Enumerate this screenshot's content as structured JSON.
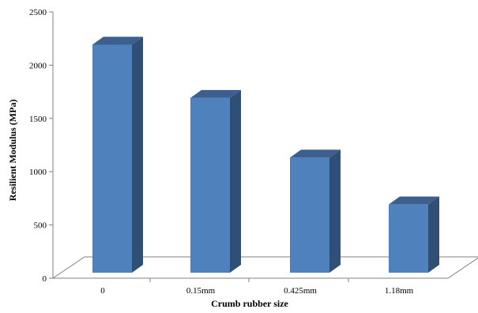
{
  "chart_data": {
    "type": "bar",
    "style": "3d-column",
    "categories": [
      "0",
      "0.15mm",
      "0.425mm",
      "1.18mm"
    ],
    "values": [
      2200,
      1700,
      1140,
      700
    ],
    "title": "",
    "xlabel": "Crumb rubber size",
    "ylabel": "Resilient Modulus (MPa)",
    "ylim": [
      0,
      2500
    ],
    "yticks": [
      "0",
      "500",
      "1000",
      "1500",
      "2000",
      "2500"
    ],
    "grid": false,
    "legend": "none",
    "colors": {
      "bar_front": "#4f81bd",
      "bar_side": "#2f4f77",
      "bar_top": "#3d5f8e",
      "floor": "#ffffff",
      "axis": "#808080"
    }
  }
}
